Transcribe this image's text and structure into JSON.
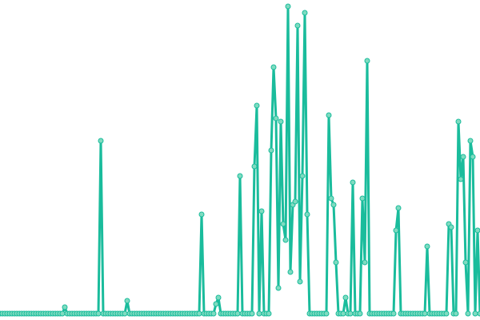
{
  "chart_data": {
    "type": "line",
    "color": "#1abc9c",
    "marker_color": "#7fdbc0",
    "ylim": [
      0,
      100
    ],
    "values": [
      2,
      2,
      2,
      2,
      2,
      2,
      2,
      2,
      2,
      2,
      2,
      2,
      2,
      2,
      2,
      2,
      2,
      2,
      2,
      2,
      2,
      2,
      2,
      2,
      2,
      2,
      2,
      4,
      2,
      2,
      2,
      2,
      2,
      2,
      2,
      2,
      2,
      2,
      2,
      2,
      2,
      2,
      56,
      2,
      2,
      2,
      2,
      2,
      2,
      2,
      2,
      2,
      2,
      6,
      2,
      2,
      2,
      2,
      2,
      2,
      2,
      2,
      2,
      2,
      2,
      2,
      2,
      2,
      2,
      2,
      2,
      2,
      2,
      2,
      2,
      2,
      2,
      2,
      2,
      2,
      2,
      2,
      2,
      2,
      33,
      2,
      2,
      2,
      2,
      2,
      5,
      7,
      2,
      2,
      2,
      2,
      2,
      2,
      2,
      2,
      45,
      2,
      2,
      2,
      2,
      2,
      48,
      67,
      2,
      34,
      2,
      2,
      2,
      53,
      79,
      63,
      10,
      62,
      30,
      25,
      98,
      15,
      36,
      37,
      92,
      12,
      45,
      96,
      33,
      2,
      2,
      2,
      2,
      2,
      2,
      2,
      2,
      64,
      38,
      36,
      18,
      2,
      2,
      2,
      7,
      2,
      2,
      43,
      2,
      2,
      2,
      38,
      18,
      81,
      2,
      2,
      2,
      2,
      2,
      2,
      2,
      2,
      2,
      2,
      2,
      28,
      35,
      2,
      2,
      2,
      2,
      2,
      2,
      2,
      2,
      2,
      2,
      2,
      23,
      2,
      2,
      2,
      2,
      2,
      2,
      2,
      2,
      30,
      29,
      2,
      2,
      62,
      44,
      51,
      18,
      2,
      56,
      51,
      2,
      28,
      2
    ]
  }
}
